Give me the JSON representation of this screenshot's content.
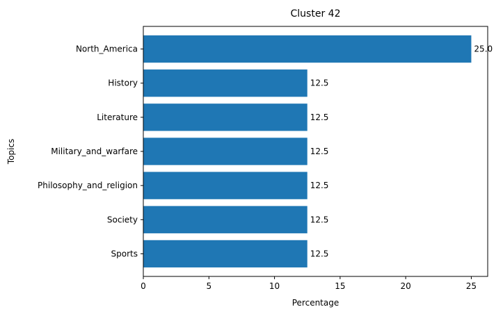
{
  "chart_data": {
    "type": "bar",
    "orientation": "horizontal",
    "title": "Cluster 42",
    "xlabel": "Percentage",
    "ylabel": "Topics",
    "categories": [
      "North_America",
      "History",
      "Literature",
      "Military_and_warfare",
      "Philosophy_and_religion",
      "Society",
      "Sports"
    ],
    "values": [
      25.0,
      12.5,
      12.5,
      12.5,
      12.5,
      12.5,
      12.5
    ],
    "data_labels": [
      "25.0",
      "12.5",
      "12.5",
      "12.5",
      "12.5",
      "12.5",
      "12.5"
    ],
    "xticks": [
      "0",
      "5",
      "10",
      "15",
      "20",
      "25"
    ],
    "xlim": [
      0,
      26.25
    ],
    "grid": false,
    "bar_color": "#1f77b4"
  }
}
